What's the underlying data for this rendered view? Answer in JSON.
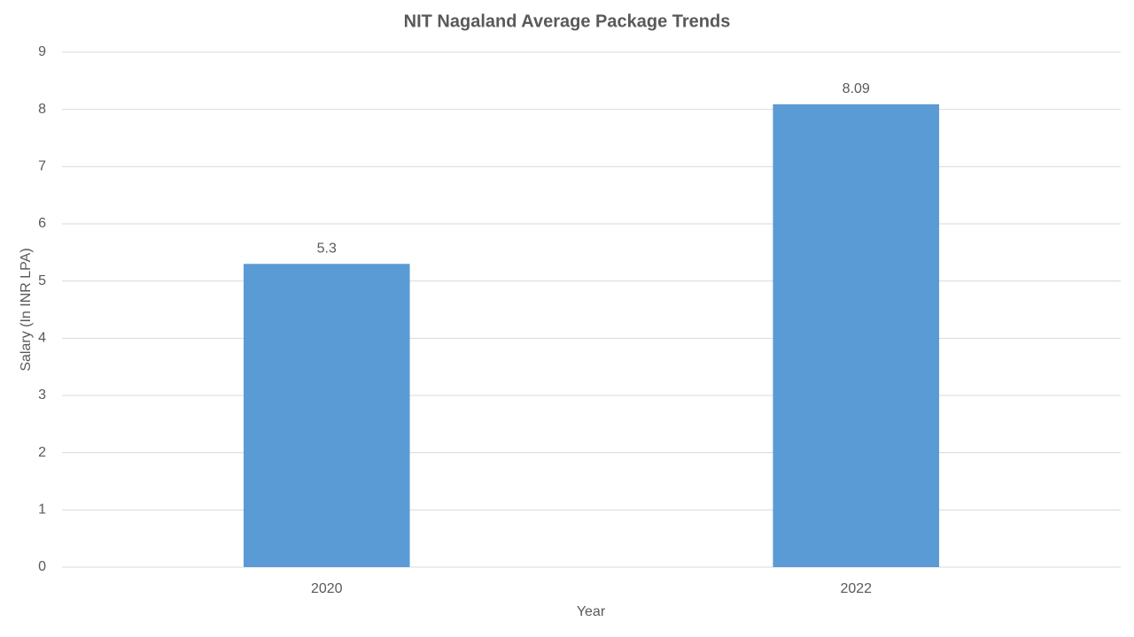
{
  "chart_data": {
    "type": "bar",
    "title": "NIT Nagaland Average Package Trends",
    "x_label": "Year",
    "y_label": "Salary (In INR LPA)",
    "categories": [
      "2020",
      "2022"
    ],
    "values": [
      5.3,
      8.09
    ],
    "color": "#5b9bd5",
    "ylim": [
      0,
      9
    ],
    "yticks": [
      0,
      1,
      2,
      3,
      4,
      5,
      6,
      7,
      8,
      9
    ],
    "grid": true
  }
}
